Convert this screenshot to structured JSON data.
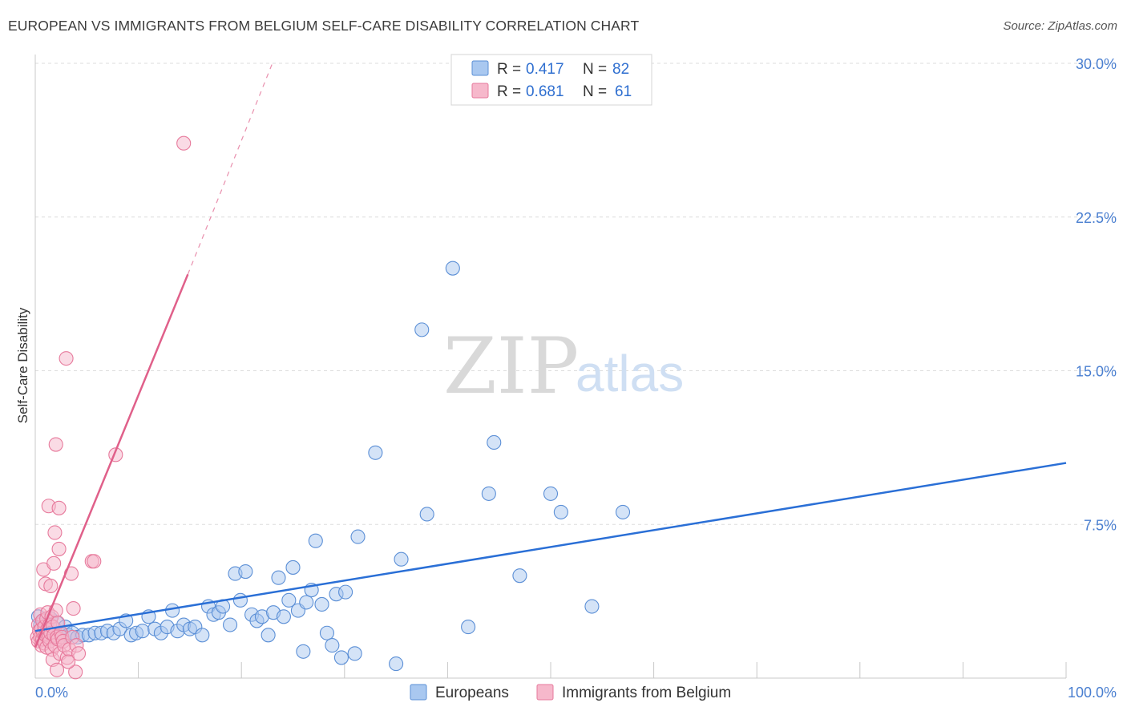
{
  "header": {
    "title": "EUROPEAN VS IMMIGRANTS FROM BELGIUM SELF-CARE DISABILITY CORRELATION CHART",
    "source": "Source: ZipAtlas.com"
  },
  "watermark": {
    "zip": "ZIP",
    "atlas": "atlas"
  },
  "colors": {
    "blue_fill": "#a9c8f0",
    "blue_stroke": "#5b8fd6",
    "blue_line": "#2a6fd6",
    "pink_fill": "#f6b8cb",
    "pink_stroke": "#e77a9c",
    "pink_line": "#e0608a",
    "grid": "#dddddd",
    "tick_label": "#4a7fd0"
  },
  "chart_data": {
    "type": "scatter",
    "xlabel": "",
    "ylabel": "Self-Care Disability",
    "xlim": [
      0,
      100
    ],
    "ylim": [
      0,
      30
    ],
    "x_tick_labels": [
      "0.0%",
      "100.0%"
    ],
    "y_ticks": [
      7.5,
      15.0,
      22.5,
      30.0
    ],
    "y_tick_labels": [
      "7.5%",
      "15.0%",
      "22.5%",
      "30.0%"
    ],
    "x_minor_ticks": [
      10,
      20,
      30,
      40,
      50,
      60,
      70,
      80,
      90,
      100
    ],
    "grid": true,
    "legend_position": "top-center",
    "legend": [
      {
        "name": "Europeans",
        "r_label": "R =",
        "r_value": "0.417",
        "n_label": "N =",
        "n_value": "82"
      },
      {
        "name": "Immigrants from Belgium",
        "r_label": "R =",
        "r_value": "0.681",
        "n_label": "N =",
        "n_value": "61"
      }
    ],
    "series": [
      {
        "name": "Europeans",
        "trend": {
          "x0": 0.0,
          "y0": 2.3,
          "x1": 100.0,
          "y1": 10.5
        },
        "points": [
          [
            0.3,
            3.0
          ],
          [
            0.5,
            2.6
          ],
          [
            0.6,
            2.4
          ],
          [
            0.8,
            2.8
          ],
          [
            1.0,
            2.2
          ],
          [
            1.1,
            2.5
          ],
          [
            1.3,
            2.3
          ],
          [
            1.5,
            2.9
          ],
          [
            1.7,
            2.1
          ],
          [
            1.9,
            2.4
          ],
          [
            2.1,
            2.7
          ],
          [
            2.3,
            2.2
          ],
          [
            2.6,
            2.0
          ],
          [
            2.9,
            2.5
          ],
          [
            3.2,
            2.1
          ],
          [
            3.6,
            2.2
          ],
          [
            4.1,
            2.0
          ],
          [
            4.6,
            2.1
          ],
          [
            5.2,
            2.1
          ],
          [
            5.8,
            2.2
          ],
          [
            6.4,
            2.2
          ],
          [
            7.0,
            2.3
          ],
          [
            7.6,
            2.2
          ],
          [
            8.2,
            2.4
          ],
          [
            8.8,
            2.8
          ],
          [
            9.3,
            2.1
          ],
          [
            9.8,
            2.2
          ],
          [
            10.4,
            2.3
          ],
          [
            11.0,
            3.0
          ],
          [
            11.6,
            2.4
          ],
          [
            12.2,
            2.2
          ],
          [
            12.8,
            2.5
          ],
          [
            13.3,
            3.3
          ],
          [
            13.8,
            2.3
          ],
          [
            14.4,
            2.6
          ],
          [
            15.0,
            2.4
          ],
          [
            15.5,
            2.5
          ],
          [
            16.2,
            2.1
          ],
          [
            16.8,
            3.5
          ],
          [
            17.3,
            3.1
          ],
          [
            17.8,
            3.2
          ],
          [
            18.2,
            3.5
          ],
          [
            18.9,
            2.6
          ],
          [
            19.4,
            5.1
          ],
          [
            19.9,
            3.8
          ],
          [
            20.4,
            5.2
          ],
          [
            21.0,
            3.1
          ],
          [
            21.5,
            2.8
          ],
          [
            22.0,
            3.0
          ],
          [
            22.6,
            2.1
          ],
          [
            23.1,
            3.2
          ],
          [
            23.6,
            4.9
          ],
          [
            24.1,
            3.0
          ],
          [
            24.6,
            3.8
          ],
          [
            25.0,
            5.4
          ],
          [
            25.5,
            3.3
          ],
          [
            26.0,
            1.3
          ],
          [
            26.3,
            3.7
          ],
          [
            26.8,
            4.3
          ],
          [
            27.2,
            6.7
          ],
          [
            27.8,
            3.6
          ],
          [
            28.3,
            2.2
          ],
          [
            28.8,
            1.6
          ],
          [
            29.2,
            4.1
          ],
          [
            29.7,
            1.0
          ],
          [
            30.1,
            4.2
          ],
          [
            31.0,
            1.2
          ],
          [
            31.3,
            6.9
          ],
          [
            33.0,
            11.0
          ],
          [
            35.0,
            0.7
          ],
          [
            35.5,
            5.8
          ],
          [
            37.5,
            17.0
          ],
          [
            38.0,
            8.0
          ],
          [
            40.5,
            20.0
          ],
          [
            42.0,
            2.5
          ],
          [
            44.0,
            9.0
          ],
          [
            44.5,
            11.5
          ],
          [
            47.0,
            5.0
          ],
          [
            50.0,
            9.0
          ],
          [
            51.0,
            8.1
          ],
          [
            54.0,
            3.5
          ],
          [
            57.0,
            8.1
          ]
        ]
      },
      {
        "name": "Immigrants from Belgium",
        "trend": {
          "x0": 0.0,
          "y0": 1.5,
          "x1": 14.8,
          "y1": 19.7,
          "dash_x1": 23.0,
          "dash_y1": 30.0
        },
        "points": [
          [
            0.2,
            2.0
          ],
          [
            0.3,
            2.6
          ],
          [
            0.3,
            1.8
          ],
          [
            0.4,
            2.3
          ],
          [
            0.5,
            3.1
          ],
          [
            0.5,
            2.0
          ],
          [
            0.6,
            1.6
          ],
          [
            0.6,
            2.4
          ],
          [
            0.7,
            2.8
          ],
          [
            0.7,
            1.9
          ],
          [
            0.8,
            2.2
          ],
          [
            0.8,
            5.3
          ],
          [
            0.9,
            2.5
          ],
          [
            0.9,
            1.7
          ],
          [
            1.0,
            4.6
          ],
          [
            1.0,
            2.1
          ],
          [
            1.1,
            2.9
          ],
          [
            1.1,
            1.5
          ],
          [
            1.2,
            2.4
          ],
          [
            1.2,
            3.2
          ],
          [
            1.3,
            8.4
          ],
          [
            1.3,
            2.0
          ],
          [
            1.4,
            1.8
          ],
          [
            1.4,
            2.6
          ],
          [
            1.5,
            4.5
          ],
          [
            1.5,
            2.2
          ],
          [
            1.6,
            3.0
          ],
          [
            1.6,
            1.4
          ],
          [
            1.7,
            2.5
          ],
          [
            1.7,
            0.9
          ],
          [
            1.8,
            5.6
          ],
          [
            1.8,
            2.1
          ],
          [
            1.9,
            7.1
          ],
          [
            1.9,
            1.6
          ],
          [
            2.0,
            11.4
          ],
          [
            2.0,
            3.3
          ],
          [
            2.1,
            2.0
          ],
          [
            2.1,
            0.4
          ],
          [
            2.2,
            2.7
          ],
          [
            2.2,
            1.9
          ],
          [
            2.3,
            8.3
          ],
          [
            2.3,
            6.3
          ],
          [
            2.4,
            1.2
          ],
          [
            2.5,
            2.2
          ],
          [
            2.6,
            2.0
          ],
          [
            2.7,
            1.8
          ],
          [
            2.8,
            1.6
          ],
          [
            3.0,
            15.6
          ],
          [
            3.1,
            1.0
          ],
          [
            3.3,
            1.4
          ],
          [
            3.5,
            5.1
          ],
          [
            3.6,
            2.0
          ],
          [
            3.7,
            3.4
          ],
          [
            3.9,
            0.3
          ],
          [
            4.0,
            1.6
          ],
          [
            4.2,
            1.2
          ],
          [
            5.5,
            5.7
          ],
          [
            5.7,
            5.7
          ],
          [
            7.8,
            10.9
          ],
          [
            14.4,
            26.1
          ],
          [
            3.2,
            0.8
          ]
        ]
      }
    ]
  }
}
